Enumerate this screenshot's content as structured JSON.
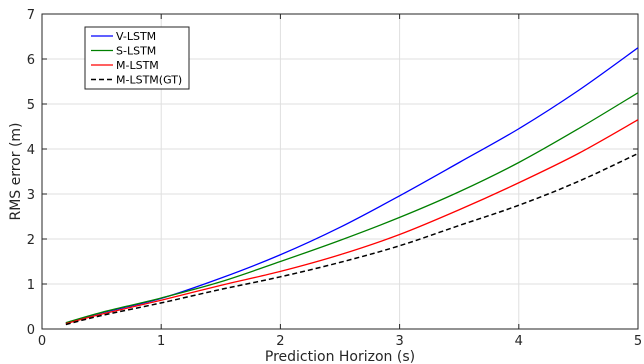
{
  "chart_data": {
    "type": "line",
    "title": "",
    "xlabel": "Prediction Horizon (s)",
    "ylabel": "RMS error (m)",
    "xlim": [
      0,
      5
    ],
    "ylim": [
      0,
      7
    ],
    "xticks": [
      0,
      1,
      2,
      3,
      4,
      5
    ],
    "yticks": [
      0,
      1,
      2,
      3,
      4,
      5,
      6,
      7
    ],
    "x_tick_labels": [
      "0",
      "1",
      "2",
      "3",
      "4",
      "5"
    ],
    "y_tick_labels": [
      "0",
      "1",
      "2",
      "3",
      "4",
      "5",
      "6",
      "7"
    ],
    "grid": true,
    "legend_position": "top-left",
    "x": [
      0.2,
      0.5,
      1.0,
      1.5,
      2.0,
      2.5,
      3.0,
      3.5,
      4.0,
      4.5,
      5.0
    ],
    "series": [
      {
        "name": "V-LSTM",
        "color": "#0000ff",
        "dash": "solid",
        "values": [
          0.13,
          0.36,
          0.68,
          1.13,
          1.65,
          2.26,
          2.96,
          3.7,
          4.45,
          5.3,
          6.25
        ]
      },
      {
        "name": "S-LSTM",
        "color": "#008000",
        "dash": "solid",
        "values": [
          0.14,
          0.37,
          0.69,
          1.05,
          1.5,
          1.97,
          2.48,
          3.05,
          3.7,
          4.45,
          5.25
        ]
      },
      {
        "name": "M-LSTM",
        "color": "#ff0000",
        "dash": "solid",
        "values": [
          0.12,
          0.33,
          0.64,
          0.97,
          1.28,
          1.65,
          2.1,
          2.65,
          3.25,
          3.9,
          4.65
        ]
      },
      {
        "name": "M-LSTM(GT)",
        "color": "#000000",
        "dash": "dashed",
        "values": [
          0.1,
          0.3,
          0.58,
          0.88,
          1.16,
          1.48,
          1.85,
          2.3,
          2.75,
          3.28,
          3.9
        ]
      }
    ]
  }
}
